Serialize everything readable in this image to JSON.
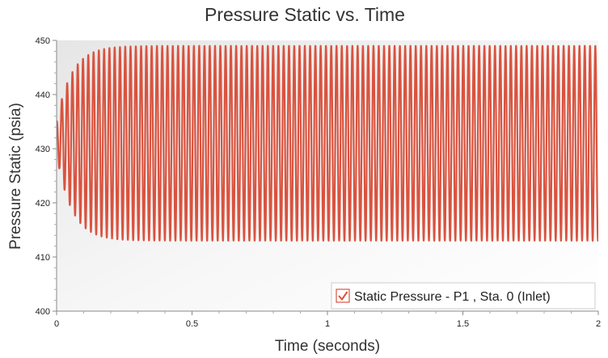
{
  "chart_data": {
    "type": "line",
    "title": "Pressure Static vs. Time",
    "xlabel": "Time (seconds)",
    "ylabel": "Pressure Static (psia)",
    "xlim": [
      0,
      2
    ],
    "ylim": [
      400,
      450
    ],
    "x_ticks": [
      "0",
      "0.5",
      "1",
      "1.5",
      "2"
    ],
    "y_ticks": [
      "400",
      "410",
      "420",
      "430",
      "440",
      "450"
    ],
    "grid": false,
    "legend": {
      "position": "bottom-right",
      "checked": true
    },
    "series": [
      {
        "name": "Static Pressure - P1 , Sta. 0 (Inlet)",
        "color": "#d9533f",
        "waveform": {
          "period_s": 0.0195,
          "initial_value": 434,
          "settled_max": 449,
          "settled_min": 413,
          "first_cycle_max": 436,
          "first_cycle_min": 427,
          "end_value": 434
        }
      }
    ]
  }
}
